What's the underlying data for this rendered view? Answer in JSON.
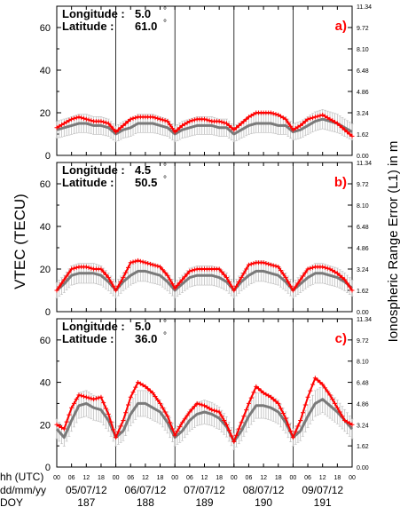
{
  "colors": {
    "observed": "#ff0000",
    "model": "#7a7a7a",
    "errorbar": "#bdbdbd",
    "axis": "#000000"
  },
  "left_axis_label": "VTEC (TECU)",
  "right_axis_label": "Ionospheric Range Error (L1) in m",
  "left_ticks": [
    "0",
    "20",
    "40",
    "60"
  ],
  "right_ticks": [
    "0.00",
    "1.62",
    "3.24",
    "4.86",
    "6.48",
    "8.10",
    "9.72",
    "11.34"
  ],
  "x_hour_ticks": [
    "00",
    "06",
    "12",
    "18"
  ],
  "x_hour_ticks_final": "00",
  "bottom_rows": {
    "hh_label": "hh (UTC)",
    "date_label": "dd/mm/yy",
    "doy_label": "DOY",
    "dates": [
      "05/07/12",
      "06/07/12",
      "07/07/12",
      "08/07/12",
      "09/07/12"
    ],
    "doys": [
      "187",
      "188",
      "189",
      "190",
      "191"
    ]
  },
  "panels": [
    {
      "id": "a",
      "letter": "a)",
      "longitude_label": "Longitude :",
      "longitude_value": "5.0",
      "latitude_label": "Latitude :",
      "latitude_value": "61.0",
      "degree": "°"
    },
    {
      "id": "b",
      "letter": "b)",
      "longitude_label": "Longitude :",
      "longitude_value": "4.5",
      "latitude_label": "Latitude :",
      "latitude_value": "50.5",
      "degree": "°"
    },
    {
      "id": "c",
      "letter": "c)",
      "longitude_label": "Longitude :",
      "longitude_value": "5.0",
      "latitude_label": "Latitude :",
      "latitude_value": "36.0",
      "degree": "°"
    }
  ],
  "chart_data": [
    {
      "type": "line",
      "panel": "a",
      "x_unit": "hours since 05/07/12 00 UTC",
      "xlim": [
        0,
        120
      ],
      "ylim": [
        0,
        70
      ],
      "ylim_right": [
        0,
        11.34
      ],
      "x": [
        0,
        3,
        6,
        9,
        12,
        15,
        18,
        21,
        24,
        27,
        30,
        33,
        36,
        39,
        42,
        45,
        48,
        51,
        54,
        57,
        60,
        63,
        66,
        69,
        72,
        75,
        78,
        81,
        84,
        87,
        90,
        93,
        96,
        99,
        102,
        105,
        108,
        111,
        114,
        117,
        120
      ],
      "series": [
        {
          "values": [
            13,
            15,
            17,
            18,
            17,
            16,
            16,
            15,
            11,
            14,
            17,
            18,
            18,
            18,
            17,
            16,
            11,
            14,
            16,
            17,
            17,
            16,
            16,
            15,
            12,
            15,
            18,
            20,
            20,
            20,
            19,
            17,
            12,
            14,
            17,
            18,
            19,
            17,
            15,
            12,
            9
          ]
        },
        {
          "values": [
            12,
            13,
            14,
            15,
            15,
            14,
            14,
            13,
            10,
            12,
            13,
            15,
            15,
            15,
            14,
            13,
            10,
            12,
            13,
            14,
            14,
            14,
            13,
            13,
            10,
            12,
            14,
            15,
            15,
            15,
            14,
            14,
            11,
            12,
            14,
            16,
            17,
            16,
            15,
            13,
            11
          ]
        }
      ]
    },
    {
      "type": "line",
      "panel": "b",
      "x_unit": "hours since 05/07/12 00 UTC",
      "xlim": [
        0,
        120
      ],
      "ylim": [
        0,
        70
      ],
      "ylim_right": [
        0,
        11.34
      ],
      "x": [
        0,
        3,
        6,
        9,
        12,
        15,
        18,
        21,
        24,
        27,
        30,
        33,
        36,
        39,
        42,
        45,
        48,
        51,
        54,
        57,
        60,
        63,
        66,
        69,
        72,
        75,
        78,
        81,
        84,
        87,
        90,
        93,
        96,
        99,
        102,
        105,
        108,
        111,
        114,
        117,
        120
      ],
      "series": [
        {
          "values": [
            10,
            15,
            20,
            21,
            21,
            20,
            20,
            16,
            10,
            16,
            23,
            24,
            23,
            22,
            21,
            17,
            11,
            15,
            19,
            20,
            20,
            20,
            20,
            16,
            10,
            16,
            22,
            23,
            23,
            22,
            21,
            16,
            10,
            15,
            20,
            21,
            21,
            20,
            18,
            15,
            10
          ]
        },
        {
          "values": [
            10,
            13,
            17,
            18,
            18,
            18,
            17,
            14,
            10,
            14,
            17,
            19,
            19,
            18,
            17,
            14,
            10,
            13,
            16,
            17,
            17,
            17,
            16,
            14,
            10,
            14,
            17,
            19,
            19,
            18,
            17,
            14,
            10,
            13,
            16,
            18,
            18,
            17,
            16,
            14,
            11
          ]
        }
      ]
    },
    {
      "type": "line",
      "panel": "c",
      "x_unit": "hours since 05/07/12 00 UTC",
      "xlim": [
        0,
        120
      ],
      "ylim": [
        0,
        70
      ],
      "ylim_right": [
        0,
        11.34
      ],
      "x": [
        0,
        3,
        6,
        9,
        12,
        15,
        18,
        21,
        24,
        27,
        30,
        33,
        36,
        39,
        42,
        45,
        48,
        51,
        54,
        57,
        60,
        63,
        66,
        69,
        72,
        75,
        78,
        81,
        84,
        87,
        90,
        93,
        96,
        99,
        102,
        105,
        108,
        111,
        114,
        117,
        120
      ],
      "series": [
        {
          "values": [
            20,
            18,
            28,
            34,
            33,
            32,
            33,
            25,
            14,
            22,
            33,
            40,
            38,
            35,
            30,
            24,
            15,
            21,
            26,
            30,
            29,
            27,
            26,
            20,
            12,
            21,
            30,
            38,
            35,
            33,
            30,
            23,
            14,
            22,
            33,
            42,
            39,
            34,
            28,
            22,
            20
          ]
        },
        {
          "values": [
            18,
            14,
            22,
            29,
            30,
            28,
            27,
            22,
            14,
            17,
            25,
            30,
            30,
            28,
            26,
            21,
            14,
            17,
            22,
            25,
            26,
            25,
            23,
            19,
            12,
            17,
            24,
            29,
            29,
            28,
            26,
            21,
            14,
            17,
            24,
            30,
            32,
            29,
            26,
            22,
            18
          ]
        }
      ]
    }
  ]
}
